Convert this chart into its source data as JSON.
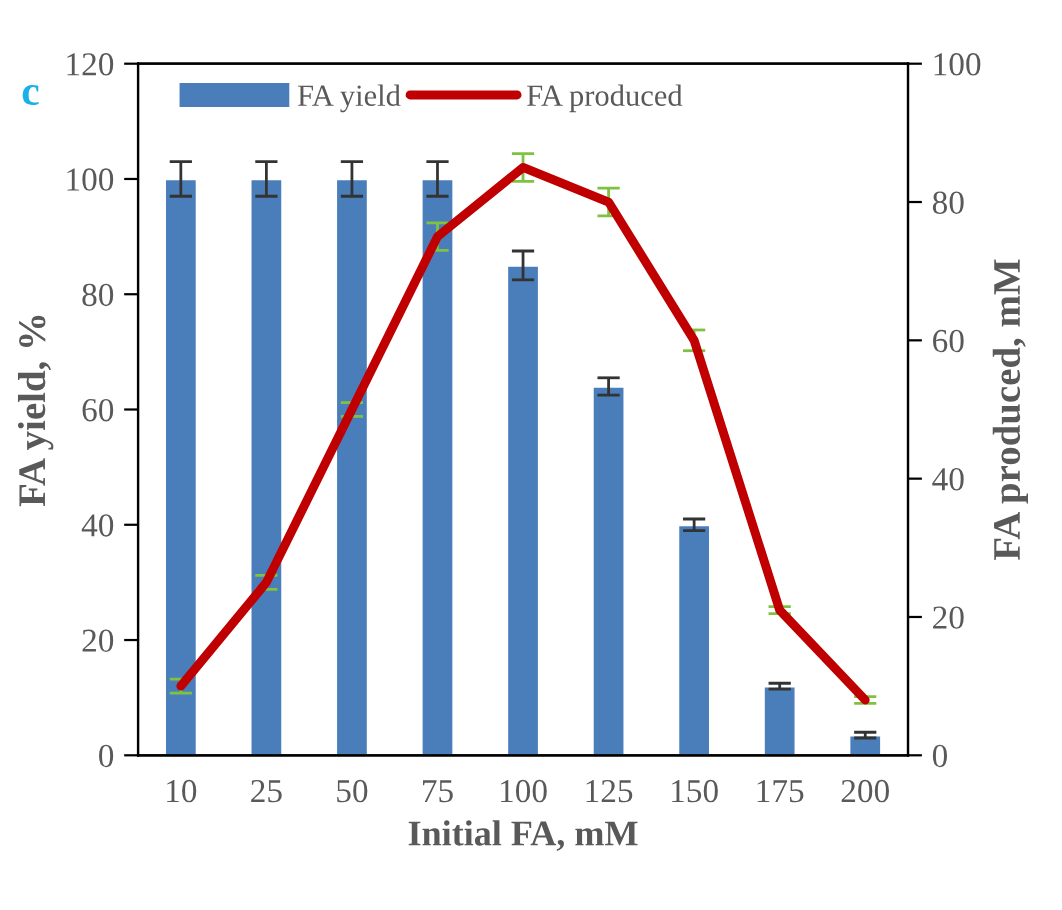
{
  "chart_data": {
    "type": "bar",
    "xlabel": "Initial FA, mM",
    "ylabel": "FA yield, %",
    "y2label": "FA produced, mM",
    "annotations": [
      "c"
    ],
    "categories": [
      "10",
      "25",
      "50",
      "75",
      "100",
      "125",
      "150",
      "175",
      "200"
    ],
    "series": [
      {
        "name": "FA yield",
        "color": "#4a7ebb",
        "values": [
          100,
          100,
          100,
          100,
          85,
          64,
          40,
          12,
          3.5
        ],
        "errors": [
          3,
          3,
          3,
          3,
          2.5,
          1.5,
          1,
          0.5,
          0.5
        ]
      },
      {
        "name": "FA produced",
        "type": "line",
        "axis": "y2",
        "color": "#c00000",
        "values": [
          10,
          25,
          50,
          75,
          85,
          80,
          60,
          21,
          8
        ],
        "errors": [
          1,
          1,
          1,
          2,
          2,
          2,
          1.5,
          0.5,
          0.5
        ]
      }
    ],
    "ylim": [
      0,
      120
    ],
    "yticks": [
      0,
      20,
      40,
      60,
      80,
      100,
      120
    ],
    "y2lim": [
      0,
      100
    ],
    "y2ticks": [
      0,
      20,
      40,
      60,
      80,
      100
    ],
    "grid": false,
    "legend": "top left"
  }
}
